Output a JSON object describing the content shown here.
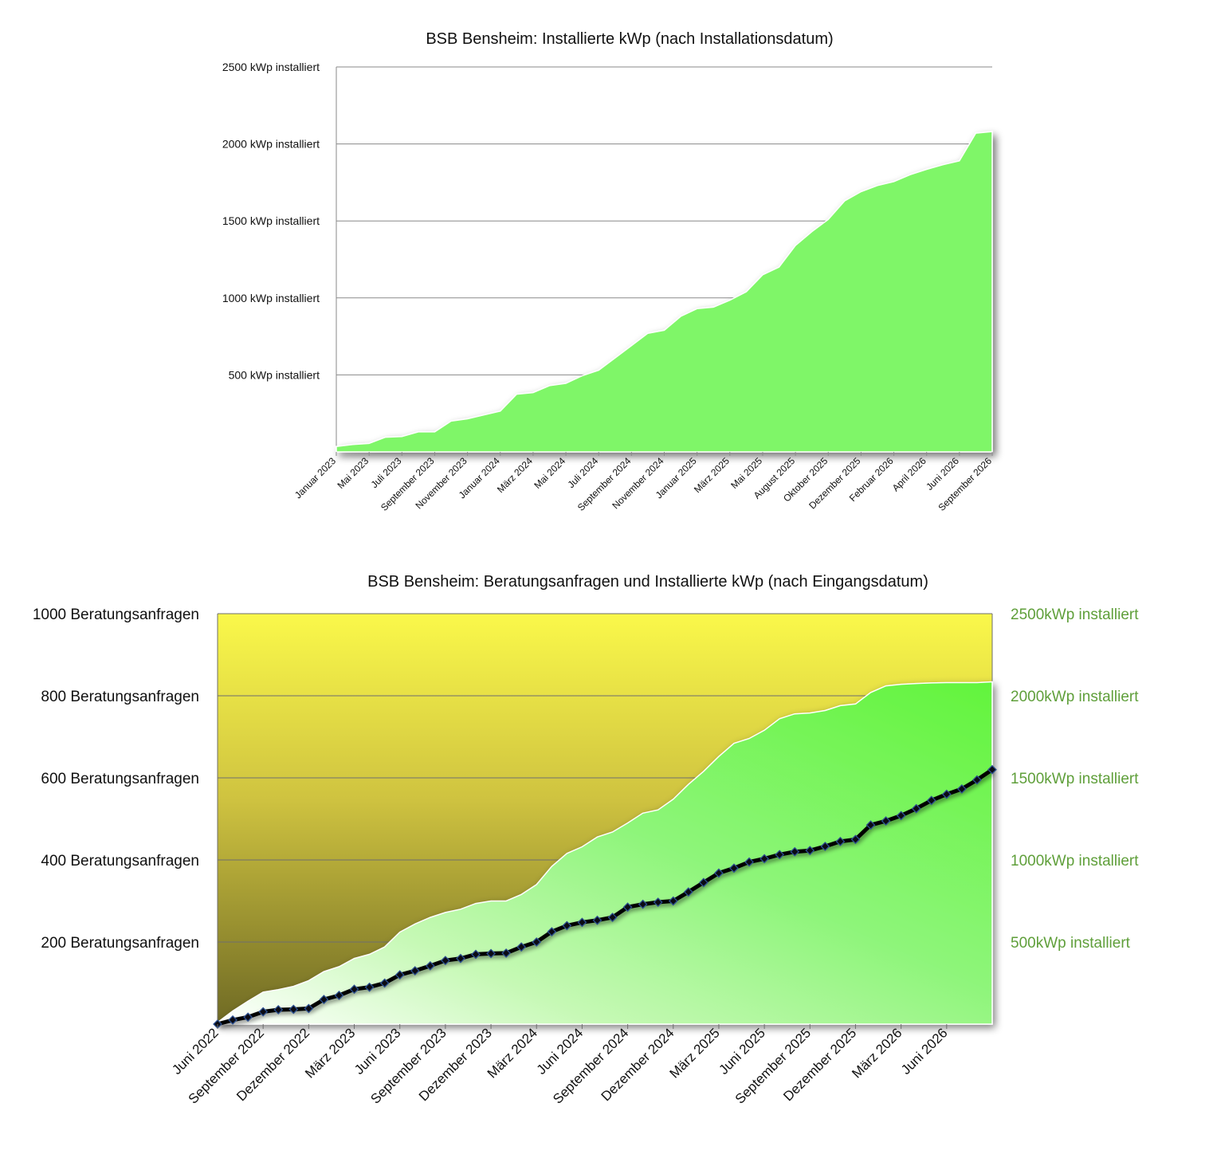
{
  "chart_data": [
    {
      "type": "area",
      "title": "BSB Bensheim: Installierte kWp (nach Installationsdatum)",
      "y_tick_labels": [
        "500 kWp installiert",
        "1000 kWp installiert",
        "1500 kWp installiert",
        "2000 kWp installiert",
        "2500 kWp installiert"
      ],
      "y_tick_values": [
        500,
        1000,
        1500,
        2000,
        2500
      ],
      "ylim": [
        0,
        2500
      ],
      "x_tick_labels": [
        "Januar 2023",
        "Mai 2023",
        "Juli 2023",
        "September 2023",
        "November 2023",
        "Januar 2024",
        "März 2024",
        "Mai 2024",
        "Juli 2024",
        "September 2024",
        "November 2024",
        "Januar 2025",
        "März 2025",
        "Mai 2025",
        "August 2025",
        "Oktober 2025",
        "Dezember 2025",
        "Februar 2026",
        "April 2026",
        "Juni 2026",
        "September 2026"
      ],
      "grid": true,
      "colors": {
        "fill": "#7ff667",
        "grid": "#8a8a8a"
      },
      "series": [
        {
          "values": [
            35,
            48,
            55,
            95,
            100,
            130,
            130,
            200,
            215,
            240,
            265,
            375,
            385,
            430,
            445,
            495,
            530,
            610,
            690,
            770,
            790,
            880,
            930,
            940,
            985,
            1040,
            1150,
            1200,
            1340,
            1430,
            1510,
            1630,
            1690,
            1730,
            1755,
            1800,
            1835,
            1865,
            1890,
            2070,
            2080
          ]
        }
      ]
    },
    {
      "type": "area",
      "title": "BSB Bensheim: Beratungsanfragen und Installierte kWp (nach Eingangsdatum)",
      "y_left_tick_labels": [
        "200 Beratungsanfragen",
        "400 Beratungsanfragen",
        "600 Beratungsanfragen",
        "800 Beratungsanfragen",
        "1000 Beratungsanfragen"
      ],
      "y_left_tick_values": [
        200,
        400,
        600,
        800,
        1000
      ],
      "ylim_left": [
        0,
        1000
      ],
      "y_right_tick_labels": [
        "500kWp installiert",
        "1000kWp installiert",
        "1500kWp installiert",
        "2000kWp installiert",
        "2500kWp installiert"
      ],
      "y_right_tick_values": [
        500,
        1000,
        1500,
        2000,
        2500
      ],
      "ylim_right": [
        0,
        2500
      ],
      "x_tick_labels": [
        "Juni 2022",
        "September 2022",
        "Dezember 2022",
        "März 2023",
        "Juni 2023",
        "September 2023",
        "Dezember 2023",
        "März 2024",
        "Juni 2024",
        "September 2024",
        "Dezember 2024",
        "März 2025",
        "Juni 2025",
        "September 2025",
        "Dezember 2025",
        "März 2026",
        "Juni 2026"
      ],
      "grid": true,
      "colors": {
        "background_top": "#faf84a",
        "background_bottom": "#6f6a24",
        "area": "#6ff54a",
        "line": "#000000",
        "marker": "#2b4f8f",
        "right_axis_text": "#5f9f3a"
      },
      "series": [
        {
          "name_axis": "right",
          "kind": "area",
          "values": [
            10,
            80,
            140,
            195,
            210,
            230,
            265,
            320,
            350,
            400,
            425,
            470,
            560,
            610,
            650,
            680,
            700,
            735,
            750,
            750,
            790,
            850,
            960,
            1040,
            1080,
            1140,
            1170,
            1225,
            1285,
            1305,
            1370,
            1460,
            1540,
            1630,
            1710,
            1740,
            1790,
            1860,
            1890,
            1895,
            1910,
            1940,
            1950,
            2020,
            2060,
            2070,
            2075,
            2078,
            2080,
            2080,
            2080,
            2085
          ]
        },
        {
          "name_axis": "left",
          "kind": "line",
          "values": [
            0,
            10,
            17,
            30,
            35,
            36,
            38,
            60,
            70,
            85,
            90,
            100,
            120,
            130,
            142,
            155,
            160,
            170,
            172,
            173,
            188,
            200,
            225,
            240,
            248,
            253,
            260,
            285,
            292,
            297,
            300,
            322,
            345,
            368,
            380,
            395,
            403,
            413,
            420,
            423,
            433,
            445,
            450,
            485,
            495,
            508,
            525,
            545,
            560,
            573,
            595,
            620
          ]
        }
      ]
    }
  ]
}
